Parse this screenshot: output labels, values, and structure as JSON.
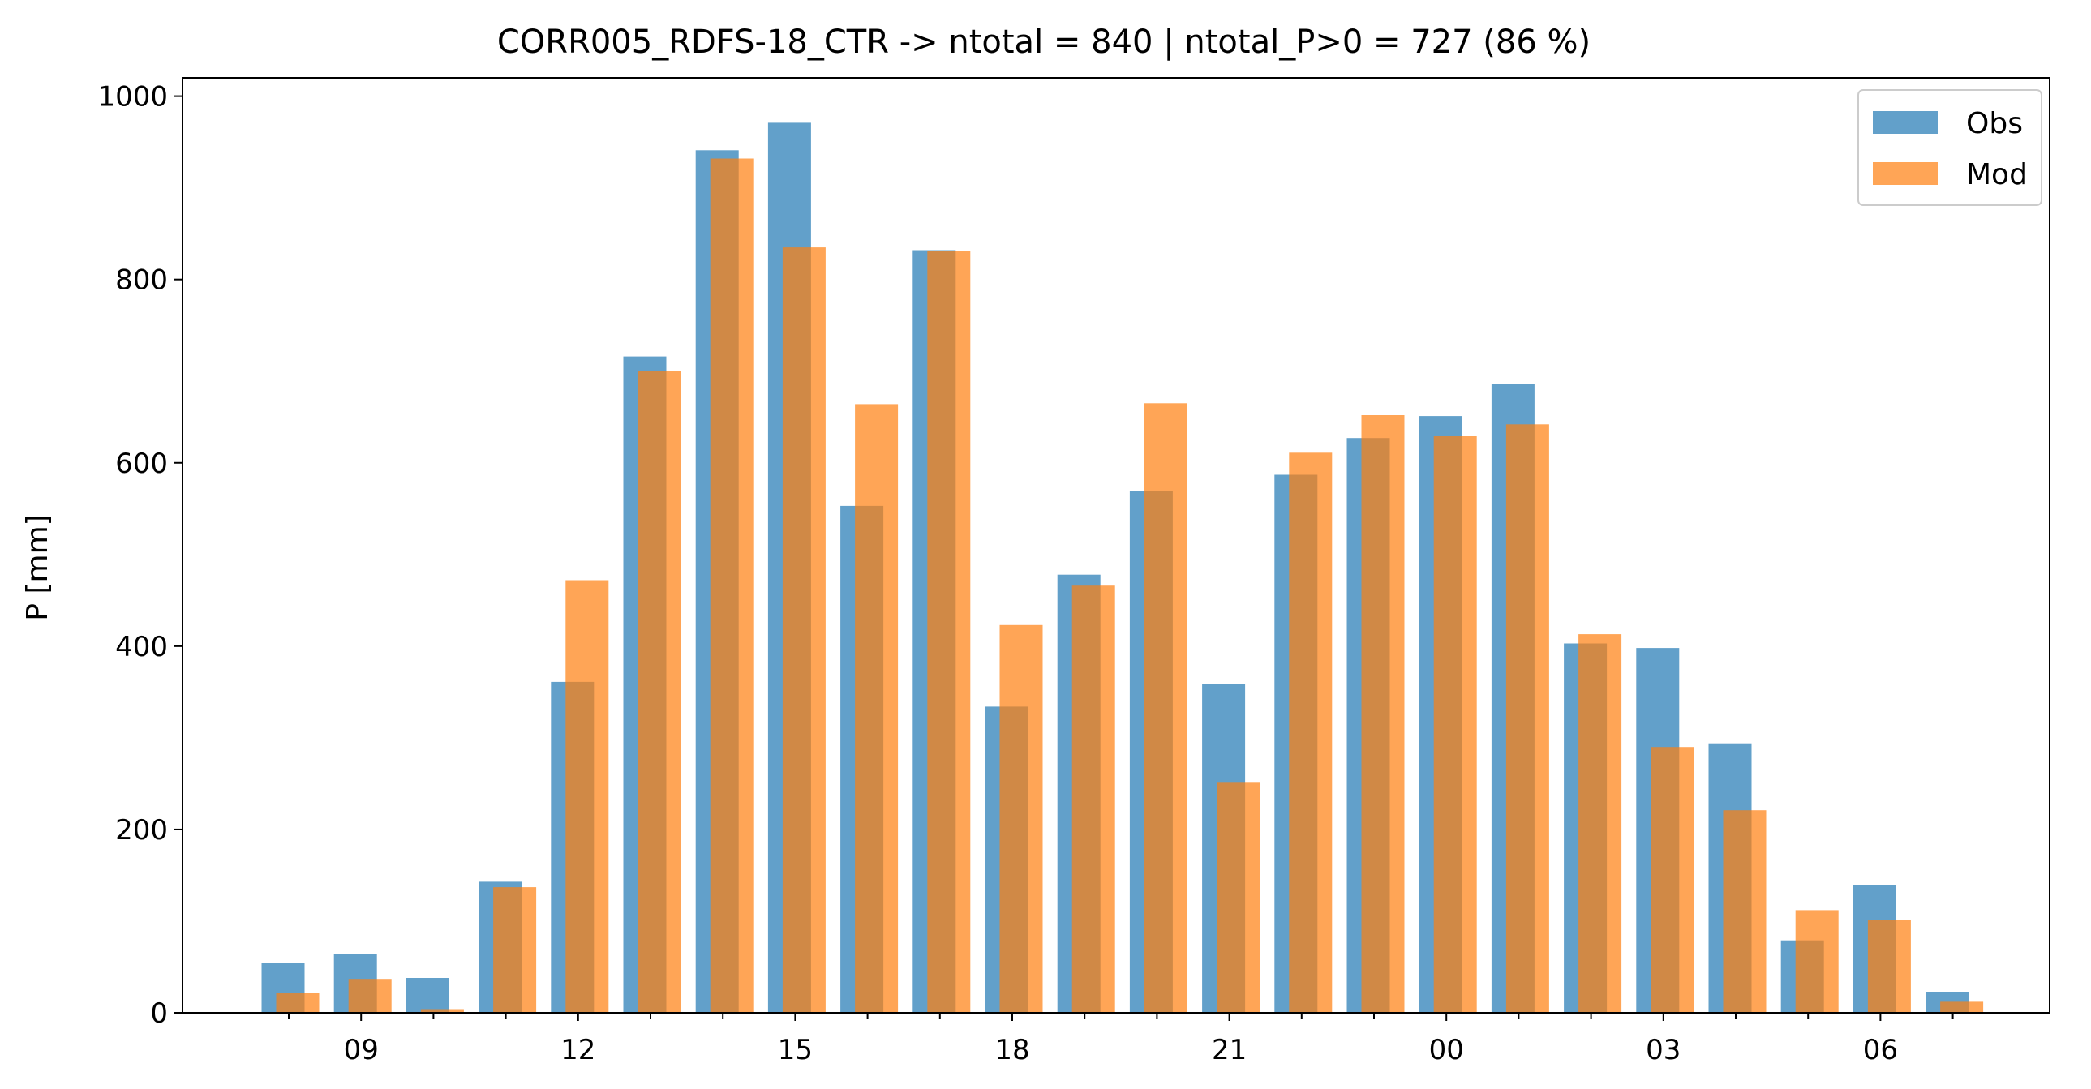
{
  "colors": {
    "obs": "#1f77b4",
    "mod": "#ff7f0e",
    "axes": "#000000",
    "legend_border": "#cccccc"
  },
  "chart_data": {
    "type": "bar",
    "title": "CORR005_RDFS-18_CTR -> ntotal = 840 | ntotal_P>0 = 727 (86 %)",
    "xlabel": "",
    "ylabel": "P [mm]",
    "ylim": [
      0,
      1020
    ],
    "yticks": [
      0,
      200,
      400,
      600,
      800,
      1000
    ],
    "x_hours": [
      8,
      9,
      10,
      11,
      12,
      13,
      14,
      15,
      16,
      17,
      18,
      19,
      20,
      21,
      22,
      23,
      0,
      1,
      2,
      3,
      4,
      5,
      6,
      7
    ],
    "xtick_labels": [
      "09",
      "12",
      "15",
      "18",
      "21",
      "00",
      "03",
      "06"
    ],
    "legend_position": "top-right",
    "grid": false,
    "series": [
      {
        "name": "Obs",
        "color": "#1f77b4",
        "opacity": 0.7,
        "values": [
          54,
          64,
          38,
          143,
          361,
          716,
          941,
          971,
          553,
          832,
          334,
          478,
          569,
          359,
          587,
          627,
          651,
          686,
          403,
          398,
          294,
          79,
          139,
          23
        ]
      },
      {
        "name": "Mod",
        "color": "#ff7f0e",
        "opacity": 0.7,
        "values": [
          22,
          37,
          4,
          137,
          472,
          700,
          932,
          835,
          664,
          831,
          423,
          466,
          665,
          251,
          611,
          652,
          629,
          642,
          413,
          290,
          221,
          112,
          101,
          12
        ]
      }
    ]
  }
}
